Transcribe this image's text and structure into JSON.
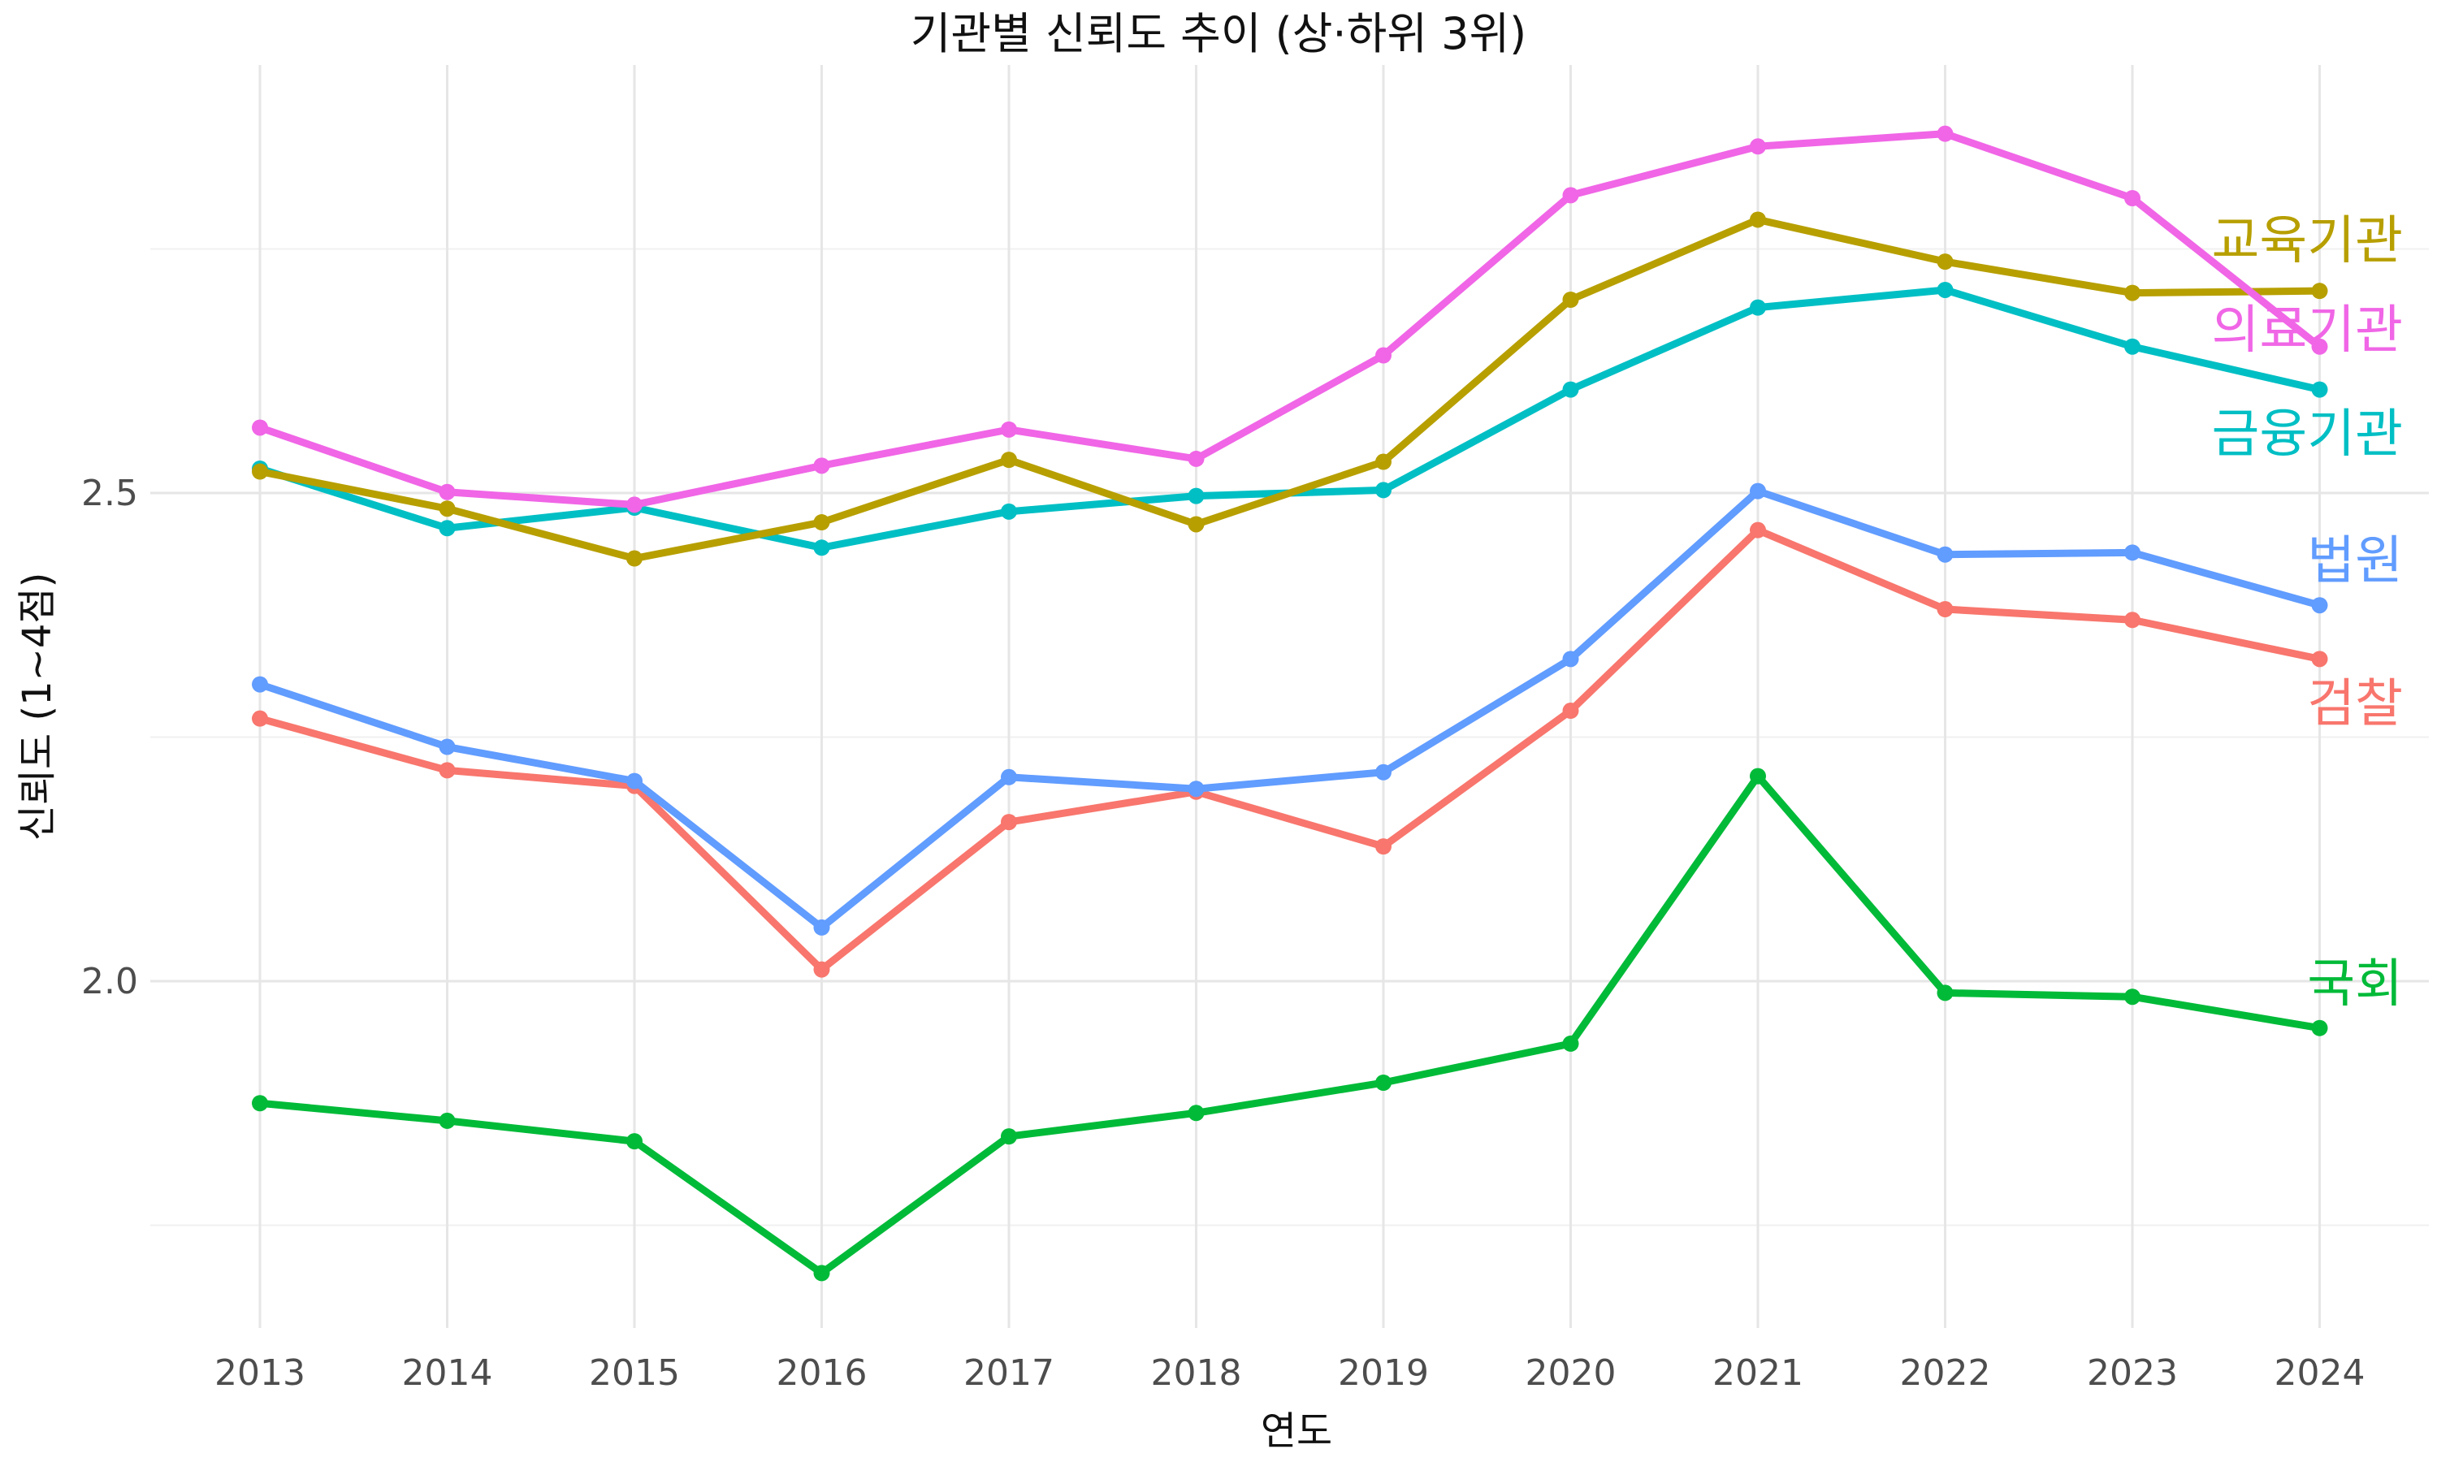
{
  "chart_data": {
    "type": "line",
    "title": "기관별 신뢰도 추이 (상·하위 3위)",
    "xlabel": "연도",
    "ylabel": "신뢰도 (1~4점)",
    "x": [
      "2013",
      "2014",
      "2015",
      "2016",
      "2017",
      "2018",
      "2019",
      "2020",
      "2021",
      "2022",
      "2023",
      "2024"
    ],
    "ylim": [
      1.65,
      2.85
    ],
    "yticks": [
      2.0,
      2.5
    ],
    "ytick_labels": [
      "2.0",
      "2.5"
    ],
    "grid": true,
    "legend": "direct labels at line ends",
    "series": [
      {
        "name": "의료기관",
        "color": "#F066E6",
        "values": [
          2.567,
          2.501,
          2.488,
          2.528,
          2.565,
          2.535,
          2.641,
          2.805,
          2.855,
          2.868,
          2.802,
          2.65
        ]
      },
      {
        "name": "교육기관",
        "color": "#B79F00",
        "values": [
          2.522,
          2.484,
          2.433,
          2.47,
          2.534,
          2.468,
          2.532,
          2.698,
          2.78,
          2.737,
          2.705,
          2.707
        ]
      },
      {
        "name": "금융기관",
        "color": "#00BFC4",
        "values": [
          2.525,
          2.464,
          2.485,
          2.444,
          2.481,
          2.497,
          2.503,
          2.606,
          2.69,
          2.708,
          2.65,
          2.606
        ]
      },
      {
        "name": "법원",
        "color": "#619CFF",
        "values": [
          2.304,
          2.24,
          2.205,
          2.055,
          2.209,
          2.197,
          2.214,
          2.33,
          2.502,
          2.437,
          2.439,
          2.385
        ]
      },
      {
        "name": "검찰",
        "color": "#F8766D",
        "values": [
          2.269,
          2.216,
          2.2,
          2.012,
          2.163,
          2.194,
          2.138,
          2.277,
          2.462,
          2.381,
          2.37,
          2.33
        ]
      },
      {
        "name": "국회",
        "color": "#00BA38",
        "values": [
          1.875,
          1.857,
          1.836,
          1.701,
          1.841,
          1.865,
          1.896,
          1.936,
          2.21,
          1.988,
          1.984,
          1.952
        ]
      }
    ]
  }
}
